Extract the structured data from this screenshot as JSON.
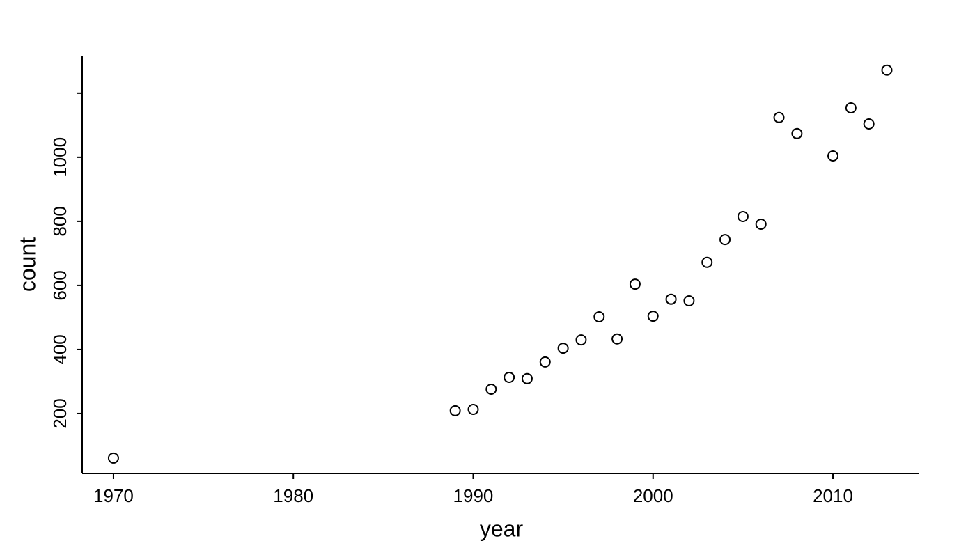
{
  "chart_data": {
    "type": "scatter",
    "x_label": "year",
    "y_label": "count",
    "x": [
      1970,
      1989,
      1990,
      1991,
      1992,
      1993,
      1994,
      1995,
      1996,
      1997,
      1998,
      1999,
      2000,
      2001,
      2002,
      2003,
      2004,
      2005,
      2006,
      2007,
      2008,
      2010,
      2011,
      2012,
      2013
    ],
    "values": [
      61,
      209,
      213,
      276,
      313,
      309,
      361,
      404,
      430,
      502,
      433,
      604,
      504,
      557,
      552,
      672,
      743,
      815,
      791,
      1124,
      1074,
      1004,
      1154,
      1104,
      1272
    ],
    "color": "#000000",
    "xlim": [
      1968.26,
      2014.8
    ],
    "xticks": [
      1970,
      1980,
      1990,
      2000,
      2010
    ],
    "ylim": [
      13,
      1317
    ],
    "yticks": [
      200,
      400,
      600,
      800,
      1000,
      {
        "value": 1200,
        "label": null
      }
    ],
    "grid": false
  }
}
